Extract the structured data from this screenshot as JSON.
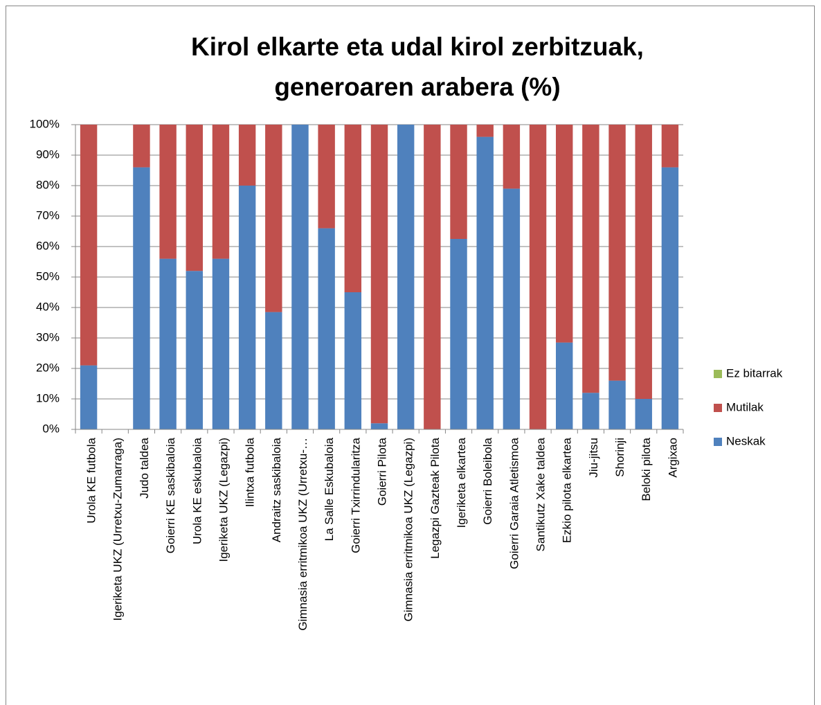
{
  "chart_data": {
    "type": "stacked_bar",
    "title": [
      "Kirol elkarte eta udal kirol zerbitzuak,",
      "generoaren arabera (%)"
    ],
    "categories": [
      "Urola KE futbola",
      "Igeriketa UKZ (Urretxu-Zumarraga)",
      "Judo taldea",
      "Goierri KE saskibaloia",
      "Urola KE eskubaloia",
      "Igeriketa UKZ (Legazpi)",
      "Ilintxa futbola",
      "Andraitz saskibaloia",
      "Gimnasia erritmikoa UKZ (Urretxu-…",
      "La Salle Eskubaloia",
      "Goierri Txirrindularitza",
      "Goierri Pilota",
      "Gimnasia erritmikoa UKZ (Legazpi)",
      "Legazpi Gazteak Pilota",
      "Igeriketa elkartea",
      "Goierri Boleibola",
      "Goierri Garaia Atletismoa",
      "Santikutz Xake taldea",
      "Ezkio pilota elkartea",
      "Jiu-jitsu",
      "Shorinji",
      "Beloki pilota",
      "Argixao"
    ],
    "series": [
      {
        "name": "Neskak",
        "color": "#4f81bd",
        "values": [
          21,
          0,
          86,
          56,
          52,
          56,
          80,
          38.5,
          100,
          66,
          45,
          2,
          100,
          0,
          62.5,
          96,
          79,
          0,
          28.5,
          12,
          16,
          10,
          86
        ]
      },
      {
        "name": "Mutilak",
        "color": "#c0504d",
        "values": [
          79,
          0,
          14,
          44,
          48,
          44,
          20,
          61.5,
          0,
          34,
          55,
          98,
          0,
          100,
          37.5,
          4,
          21,
          100,
          71.5,
          88,
          84,
          90,
          14
        ]
      },
      {
        "name": "Ez bitarrak",
        "color": "#9bbb59",
        "values": [
          0,
          0,
          0,
          0,
          0,
          0,
          0,
          0,
          0,
          0,
          0,
          0,
          0,
          0,
          0,
          0,
          0,
          0,
          0,
          0,
          0,
          0,
          0
        ]
      }
    ],
    "ylim": [
      0,
      100
    ],
    "yticks": [
      {
        "value": 0,
        "label": "0%"
      },
      {
        "value": 10,
        "label": "10%"
      },
      {
        "value": 20,
        "label": "20%"
      },
      {
        "value": 30,
        "label": "30%"
      },
      {
        "value": 40,
        "label": "40%"
      },
      {
        "value": 50,
        "label": "50%"
      },
      {
        "value": 60,
        "label": "60%"
      },
      {
        "value": 70,
        "label": "70%"
      },
      {
        "value": 80,
        "label": "80%"
      },
      {
        "value": 90,
        "label": "90%"
      },
      {
        "value": 100,
        "label": "100%"
      }
    ],
    "grid": true,
    "legend": "right"
  }
}
